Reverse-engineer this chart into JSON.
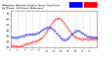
{
  "title": "Milwaukee Weather Outdoor Temp / Dew Point by Minute (24 Hours) (Alternate)",
  "temp_color": "#ff0000",
  "dew_color": "#0000ff",
  "bg_color": "#ffffff",
  "grid_color": "#aaaaaa",
  "ylim": [
    10,
    75
  ],
  "ytick_values": [
    10,
    20,
    30,
    40,
    50,
    60,
    70
  ],
  "legend_temp_color": "#ff0000",
  "legend_dew_color": "#0000ff"
}
